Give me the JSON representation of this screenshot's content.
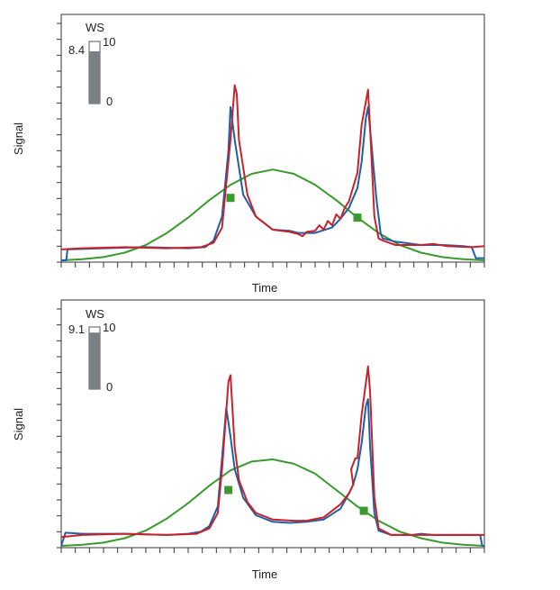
{
  "chart_data": [
    {
      "type": "line",
      "xlabel": "Time",
      "ylabel": "Signal",
      "ws": {
        "label": "WS",
        "value": 8.4,
        "value_text": "8.4",
        "max_text": "10",
        "min_text": "0",
        "max": 10,
        "min": 0
      },
      "x_ticks": 31,
      "y_ticks": 16,
      "xlim": [
        0,
        100
      ],
      "ylim": [
        0,
        100
      ],
      "colors": {
        "blue": "#1f5fa8",
        "red": "#c8222a",
        "green": "#3a9a2e"
      },
      "series": [
        {
          "color": "blue",
          "points": [
            [
              0,
              0
            ],
            [
              1.2,
              0
            ],
            [
              1.5,
              5
            ],
            [
              10,
              5.5
            ],
            [
              20,
              6
            ],
            [
              30,
              5.5
            ],
            [
              34,
              6
            ],
            [
              36,
              9
            ],
            [
              38,
              20
            ],
            [
              39.5,
              50
            ],
            [
              40,
              70
            ],
            [
              41,
              55
            ],
            [
              43,
              30
            ],
            [
              46,
              20
            ],
            [
              50,
              14
            ],
            [
              54,
              13.5
            ],
            [
              56,
              12.5
            ],
            [
              60,
              12.5
            ],
            [
              64,
              15
            ],
            [
              66,
              19
            ],
            [
              68,
              24
            ],
            [
              70,
              33
            ],
            [
              71,
              45
            ],
            [
              72,
              65
            ],
            [
              72.5,
              70
            ],
            [
              73,
              60
            ],
            [
              74.5,
              28
            ],
            [
              75.5,
              12
            ],
            [
              76,
              10
            ],
            [
              79,
              8.5
            ],
            [
              85,
              7
            ],
            [
              90,
              7
            ],
            [
              95,
              6.5
            ],
            [
              97,
              6
            ],
            [
              98,
              1
            ],
            [
              100,
              1
            ]
          ]
        },
        {
          "color": "red",
          "points": [
            [
              0,
              5
            ],
            [
              5,
              5.5
            ],
            [
              15,
              6
            ],
            [
              25,
              5.5
            ],
            [
              33,
              6
            ],
            [
              36,
              8
            ],
            [
              38,
              15
            ],
            [
              40,
              55
            ],
            [
              41,
              80
            ],
            [
              41.5,
              76
            ],
            [
              42,
              55
            ],
            [
              44,
              30
            ],
            [
              46,
              20
            ],
            [
              50,
              14
            ],
            [
              54,
              13
            ],
            [
              56,
              12
            ],
            [
              57,
              11
            ],
            [
              58,
              13
            ],
            [
              60,
              13.5
            ],
            [
              61,
              16
            ],
            [
              62,
              14
            ],
            [
              63,
              18
            ],
            [
              64,
              16
            ],
            [
              65,
              21
            ],
            [
              66,
              19
            ],
            [
              67,
              24
            ],
            [
              68,
              27
            ],
            [
              70,
              40
            ],
            [
              71,
              62
            ],
            [
              72.5,
              78
            ],
            [
              73,
              60
            ],
            [
              74,
              20
            ],
            [
              75,
              10
            ],
            [
              76,
              9
            ],
            [
              79,
              7
            ],
            [
              85,
              7
            ],
            [
              88,
              7.5
            ],
            [
              91,
              6.5
            ],
            [
              97,
              6
            ],
            [
              100,
              6.5
            ]
          ]
        },
        {
          "color": "green",
          "points": [
            [
              0,
              0
            ],
            [
              5,
              0.5
            ],
            [
              10,
              1.5
            ],
            [
              15,
              3.5
            ],
            [
              20,
              7
            ],
            [
              25,
              12.5
            ],
            [
              30,
              19.5
            ],
            [
              35,
              27.5
            ],
            [
              40,
              34.5
            ],
            [
              45,
              39.5
            ],
            [
              50,
              41.5
            ],
            [
              55,
              39.5
            ],
            [
              60,
              34.5
            ],
            [
              65,
              27.5
            ],
            [
              70,
              19.5
            ],
            [
              75,
              12.5
            ],
            [
              80,
              7
            ],
            [
              85,
              3.5
            ],
            [
              90,
              1.5
            ],
            [
              95,
              0.5
            ],
            [
              100,
              0
            ]
          ]
        }
      ],
      "markers": [
        [
          40,
          28.5
        ],
        [
          70,
          19.5
        ]
      ]
    },
    {
      "type": "line",
      "xlabel": "Time",
      "ylabel": "Signal",
      "ws": {
        "label": "WS",
        "value": 9.1,
        "value_text": "9.1",
        "max_text": "10",
        "min_text": "0",
        "max": 10,
        "min": 0
      },
      "x_ticks": 31,
      "y_ticks": 16,
      "xlim": [
        0,
        100
      ],
      "ylim": [
        0,
        100
      ],
      "colors": {
        "blue": "#1f5fa8",
        "red": "#c8222a",
        "green": "#3a9a2e"
      },
      "series": [
        {
          "color": "blue",
          "points": [
            [
              0,
              0
            ],
            [
              1,
              6
            ],
            [
              5,
              5.5
            ],
            [
              15,
              5.5
            ],
            [
              25,
              5
            ],
            [
              30,
              5.5
            ],
            [
              33,
              6.5
            ],
            [
              35,
              9
            ],
            [
              37,
              18
            ],
            [
              38,
              40
            ],
            [
              39,
              63
            ],
            [
              40,
              50
            ],
            [
              41,
              35
            ],
            [
              43,
              22
            ],
            [
              46,
              14
            ],
            [
              50,
              11
            ],
            [
              54,
              10.5
            ],
            [
              58,
              11
            ],
            [
              62,
              12
            ],
            [
              66,
              17
            ],
            [
              68,
              24
            ],
            [
              69,
              28
            ],
            [
              70,
              35
            ],
            [
              71,
              47
            ],
            [
              72,
              64
            ],
            [
              72.5,
              67
            ],
            [
              73,
              45
            ],
            [
              74,
              15
            ],
            [
              75,
              7
            ],
            [
              78,
              5
            ],
            [
              83,
              5
            ],
            [
              85,
              5.5
            ],
            [
              88,
              5
            ],
            [
              92,
              5
            ],
            [
              99,
              5
            ],
            [
              99.5,
              0
            ],
            [
              100,
              0
            ]
          ]
        },
        {
          "color": "red",
          "points": [
            [
              0,
              4
            ],
            [
              5,
              5
            ],
            [
              15,
              5.5
            ],
            [
              25,
              5
            ],
            [
              32,
              5.5
            ],
            [
              35,
              8
            ],
            [
              37,
              15
            ],
            [
              38,
              35
            ],
            [
              39.5,
              75
            ],
            [
              40,
              78
            ],
            [
              41,
              45
            ],
            [
              42,
              30
            ],
            [
              44,
              20
            ],
            [
              46,
              15
            ],
            [
              50,
              12
            ],
            [
              55,
              11.5
            ],
            [
              58,
              11.5
            ],
            [
              62,
              13
            ],
            [
              66,
              19
            ],
            [
              68,
              24
            ],
            [
              69,
              28
            ],
            [
              68.5,
              35
            ],
            [
              69.5,
              40
            ],
            [
              70,
              40
            ],
            [
              71,
              60
            ],
            [
              72.5,
              82
            ],
            [
              73,
              70
            ],
            [
              74,
              22
            ],
            [
              75,
              8
            ],
            [
              78,
              5
            ],
            [
              82,
              5
            ],
            [
              88,
              5
            ],
            [
              93,
              5
            ],
            [
              99,
              5
            ],
            [
              100,
              5
            ]
          ]
        },
        {
          "color": "green",
          "points": [
            [
              0,
              0
            ],
            [
              5,
              0.5
            ],
            [
              10,
              1.5
            ],
            [
              15,
              3.5
            ],
            [
              20,
              7
            ],
            [
              25,
              12.5
            ],
            [
              30,
              19.5
            ],
            [
              35,
              27.5
            ],
            [
              40,
              34.5
            ],
            [
              45,
              38.5
            ],
            [
              50,
              39.5
            ],
            [
              55,
              37.5
            ],
            [
              60,
              33
            ],
            [
              65,
              25.5
            ],
            [
              70,
              18
            ],
            [
              75,
              11.5
            ],
            [
              80,
              6.5
            ],
            [
              85,
              3.5
            ],
            [
              90,
              1.5
            ],
            [
              95,
              0.5
            ],
            [
              100,
              0
            ]
          ]
        }
      ],
      "markers": [
        [
          39.5,
          25.5
        ],
        [
          71.5,
          16
        ]
      ]
    }
  ]
}
